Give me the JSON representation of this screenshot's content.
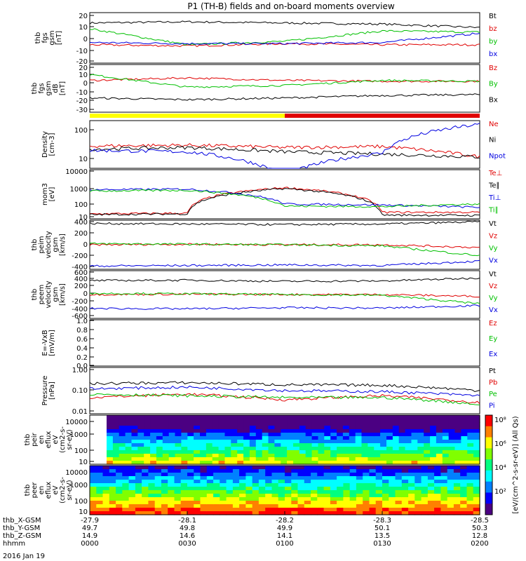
{
  "title": "P1  (TH-B) fields and on-board moments overview",
  "date": "2016 Jan 19",
  "time_axis": {
    "rows": [
      {
        "name": "thb_X-GSM",
        "values": [
          "-27.9",
          "-28.1",
          "-28.2",
          "-28.3",
          "-28.5"
        ]
      },
      {
        "name": "thb_Y-GSM",
        "values": [
          "49.7",
          "49.8",
          "49.9",
          "50.1",
          "50.3"
        ]
      },
      {
        "name": "thb_Z-GSM",
        "values": [
          "14.9",
          "14.6",
          "14.1",
          "13.5",
          "12.8"
        ]
      },
      {
        "name": "hhmm",
        "values": [
          "0000",
          "0030",
          "0100",
          "0130",
          "0200"
        ]
      }
    ]
  },
  "panels": [
    {
      "id": "p1",
      "ylabel": [
        "thb",
        "fgs",
        "gsm",
        "[nT]"
      ],
      "ticks": [
        "20",
        "10",
        "0",
        "-10",
        "-20"
      ],
      "legend": [
        {
          "t": "Bt",
          "c": "#000000"
        },
        {
          "t": "bz",
          "c": "#e00000"
        },
        {
          "t": "by",
          "c": "#00c000"
        },
        {
          "t": "bx",
          "c": "#0000e0"
        }
      ]
    },
    {
      "id": "p2",
      "ylabel": [
        "thb",
        "fgs",
        "gsm",
        "dB",
        "[nT]"
      ],
      "ticks": [
        "20",
        "10",
        "0",
        "-10",
        "-20",
        "-30"
      ],
      "legend": [
        {
          "t": "Bz",
          "c": "#e00000"
        },
        {
          "t": "By",
          "c": "#00c000"
        },
        {
          "t": "Bx",
          "c": "#000000"
        }
      ]
    },
    {
      "id": "p3",
      "ylabel": [
        "Density",
        "[cm-3]"
      ],
      "ticks": [
        "100",
        "10"
      ],
      "legend": [
        {
          "t": "Ne",
          "c": "#e00000"
        },
        {
          "t": "Ni",
          "c": "#000000"
        },
        {
          "t": "Npot",
          "c": "#0000e0"
        }
      ]
    },
    {
      "id": "p4",
      "ylabel": [
        "mom3",
        "[eV]"
      ],
      "ticks": [
        "10000",
        "1000",
        "100",
        "10"
      ],
      "legend": [
        {
          "t": "Te⊥",
          "c": "#e00000"
        },
        {
          "t": "Te∥",
          "c": "#000000"
        },
        {
          "t": "Ti⊥",
          "c": "#0000e0"
        },
        {
          "t": "Ti∥",
          "c": "#00c000"
        }
      ]
    },
    {
      "id": "p5",
      "ylabel": [
        "thb",
        "peim",
        "velocity",
        "gsm",
        "[km/s]"
      ],
      "ticks": [
        "400",
        "200",
        "0",
        "-200",
        "-400"
      ],
      "legend": [
        {
          "t": "Vt",
          "c": "#000000"
        },
        {
          "t": "Vz",
          "c": "#e00000"
        },
        {
          "t": "Vy",
          "c": "#00c000"
        },
        {
          "t": "Vx",
          "c": "#0000e0"
        }
      ]
    },
    {
      "id": "p6",
      "ylabel": [
        "thb",
        "peem",
        "velocity",
        "gsm",
        "[km/s]"
      ],
      "ticks": [
        "600",
        "400",
        "200",
        "0",
        "-200",
        "-400",
        "-600"
      ],
      "legend": [
        {
          "t": "Vt",
          "c": "#000000"
        },
        {
          "t": "Vz",
          "c": "#e00000"
        },
        {
          "t": "Vy",
          "c": "#00c000"
        },
        {
          "t": "Vx",
          "c": "#0000e0"
        }
      ]
    },
    {
      "id": "p7",
      "ylabel": [
        "E=-VxB",
        "[mV/m]"
      ],
      "ticks": [
        "1.0",
        "0.8",
        "0.6",
        "0.4",
        "0.2",
        "0.0"
      ],
      "legend": [
        {
          "t": "Ez",
          "c": "#e00000"
        },
        {
          "t": "Ey",
          "c": "#00c000"
        },
        {
          "t": "Ex",
          "c": "#0000e0"
        }
      ]
    },
    {
      "id": "p8",
      "ylabel": [
        "Pressure",
        "[nPa]"
      ],
      "ticks": [
        "1.00",
        "0.10",
        "0.01"
      ],
      "legend": [
        {
          "t": "Pt",
          "c": "#000000"
        },
        {
          "t": "Pb",
          "c": "#e00000"
        },
        {
          "t": "Pe",
          "c": "#00c000"
        },
        {
          "t": "Pi",
          "c": "#0000e0"
        }
      ]
    },
    {
      "id": "p9",
      "ylabel": [
        "thb",
        "peir",
        "en",
        "eflux",
        "eV",
        "(cm2-s-",
        "sr-eV)"
      ],
      "ticks": [
        "10000",
        "1000",
        "100",
        "10"
      ],
      "legend": []
    },
    {
      "id": "p10",
      "ylabel": [
        "thb",
        "peer",
        "en",
        "eflux",
        "eV",
        "(cm2-s-",
        "sr-eV)"
      ],
      "ticks": [
        "10000",
        "1000",
        "100",
        "10"
      ],
      "legend": []
    }
  ],
  "colorbar": {
    "labels": [
      "10⁸",
      "10⁶",
      "10⁴",
      "10²"
    ],
    "unit": "[eV/(cm^2-s-sr-eV)] (All Qs)",
    "colors": [
      "#ff0000",
      "#ff8000",
      "#ffff00",
      "#80ff00",
      "#00ff80",
      "#00ffff",
      "#0080ff",
      "#0000ff",
      "#4b0082"
    ]
  },
  "chart_data": [
    {
      "type": "line",
      "title": "P1  (TH-B) fields and on-board moments overview",
      "ylabel": "thb fgs gsm [nT]",
      "ylim": [
        -22,
        22
      ],
      "x": [
        "0000",
        "0030",
        "0100",
        "0130",
        "0200"
      ],
      "series": [
        {
          "name": "Bt",
          "values": [
            13,
            14,
            13,
            12,
            9
          ]
        },
        {
          "name": "bz",
          "values": [
            -6,
            -7,
            -5,
            -6,
            -6
          ]
        },
        {
          "name": "by",
          "values": [
            8,
            -6,
            -3,
            6,
            5
          ]
        },
        {
          "name": "bx",
          "values": [
            -4,
            -5,
            -5,
            -4,
            4
          ]
        }
      ]
    },
    {
      "type": "line",
      "ylabel": "thb fgs gsm dB [nT]",
      "ylim": [
        -35,
        22
      ],
      "x": [
        "0000",
        "0030",
        "0100",
        "0130",
        "0200"
      ],
      "series": [
        {
          "name": "Bz",
          "values": [
            3,
            6,
            3,
            2,
            2
          ]
        },
        {
          "name": "By",
          "values": [
            10,
            -5,
            -3,
            3,
            2
          ]
        },
        {
          "name": "Bx",
          "values": [
            -18,
            -20,
            -18,
            -15,
            -14
          ]
        }
      ]
    },
    {
      "type": "line",
      "ylabel": "Density [cm-3]",
      "ylim": [
        5,
        200
      ],
      "x": [
        "0000",
        "0030",
        "0100",
        "0130",
        "0200"
      ],
      "series": [
        {
          "name": "Ne",
          "values": [
            28,
            30,
            25,
            27,
            12
          ]
        },
        {
          "name": "Ni",
          "values": [
            22,
            25,
            18,
            15,
            12
          ]
        },
        {
          "name": "Npot",
          "values": [
            20,
            18,
            2.5,
            16,
            150
          ]
        }
      ]
    },
    {
      "type": "line",
      "ylabel": "mom3 [eV]",
      "ylim": [
        10,
        10000
      ],
      "x": [
        "0000",
        "0030",
        "0100",
        "0130",
        "0200"
      ],
      "series": [
        {
          "name": "Te⊥",
          "values": [
            20,
            22,
            800,
            25,
            25
          ]
        },
        {
          "name": "Te∥",
          "values": [
            18,
            20,
            700,
            17,
            16
          ]
        },
        {
          "name": "Ti⊥",
          "values": [
            600,
            650,
            80,
            70,
            50
          ]
        },
        {
          "name": "Ti∥",
          "values": [
            500,
            550,
            60,
            55,
            80
          ]
        }
      ]
    },
    {
      "type": "line",
      "ylabel": "thb peim velocity gsm [km/s]",
      "ylim": [
        -450,
        450
      ],
      "x": [
        "0000",
        "0030",
        "0100",
        "0130",
        "0200"
      ],
      "series": [
        {
          "name": "Vt",
          "values": [
            390,
            380,
            370,
            380,
            420
          ]
        },
        {
          "name": "Vz",
          "values": [
            0,
            10,
            0,
            0,
            -50
          ]
        },
        {
          "name": "Vy",
          "values": [
            20,
            10,
            0,
            -20,
            -200
          ]
        },
        {
          "name": "Vx",
          "values": [
            -390,
            -380,
            -370,
            -380,
            -300
          ]
        }
      ]
    },
    {
      "type": "line",
      "ylabel": "thb peem velocity gsm [km/s]",
      "ylim": [
        -650,
        650
      ],
      "x": [
        "0000",
        "0030",
        "0100",
        "0130",
        "0200"
      ],
      "series": [
        {
          "name": "Vt",
          "values": [
            380,
            390,
            360,
            370,
            450
          ]
        },
        {
          "name": "Vz",
          "values": [
            0,
            10,
            0,
            0,
            -50
          ]
        },
        {
          "name": "Vy",
          "values": [
            30,
            20,
            0,
            -20,
            -250
          ]
        },
        {
          "name": "Vx",
          "values": [
            -380,
            -390,
            -360,
            -370,
            -300
          ]
        }
      ]
    },
    {
      "type": "line",
      "ylabel": "E=-VxB [mV/m]",
      "ylim": [
        0,
        1
      ],
      "series": []
    },
    {
      "type": "line",
      "ylabel": "Pressure [nPa]",
      "ylim": [
        0.01,
        1
      ],
      "x": [
        "0000",
        "0030",
        "0100",
        "0130",
        "0200"
      ],
      "series": [
        {
          "name": "Pt",
          "values": [
            0.2,
            0.22,
            0.18,
            0.17,
            0.1
          ]
        },
        {
          "name": "Pb",
          "values": [
            0.05,
            0.07,
            0.04,
            0.06,
            0.03
          ]
        },
        {
          "name": "Pe",
          "values": [
            0.07,
            0.06,
            0.05,
            0.05,
            0.025
          ]
        },
        {
          "name": "Pi",
          "values": [
            0.12,
            0.14,
            0.1,
            0.09,
            0.06
          ]
        }
      ]
    },
    {
      "type": "heatmap",
      "ylabel": "thb peir en eflux eV (cm2-s-sr-eV)",
      "ylim": [
        5,
        20000
      ]
    },
    {
      "type": "heatmap",
      "ylabel": "thb peer en eflux eV (cm2-s-sr-eV)",
      "ylim": [
        5,
        20000
      ]
    }
  ]
}
